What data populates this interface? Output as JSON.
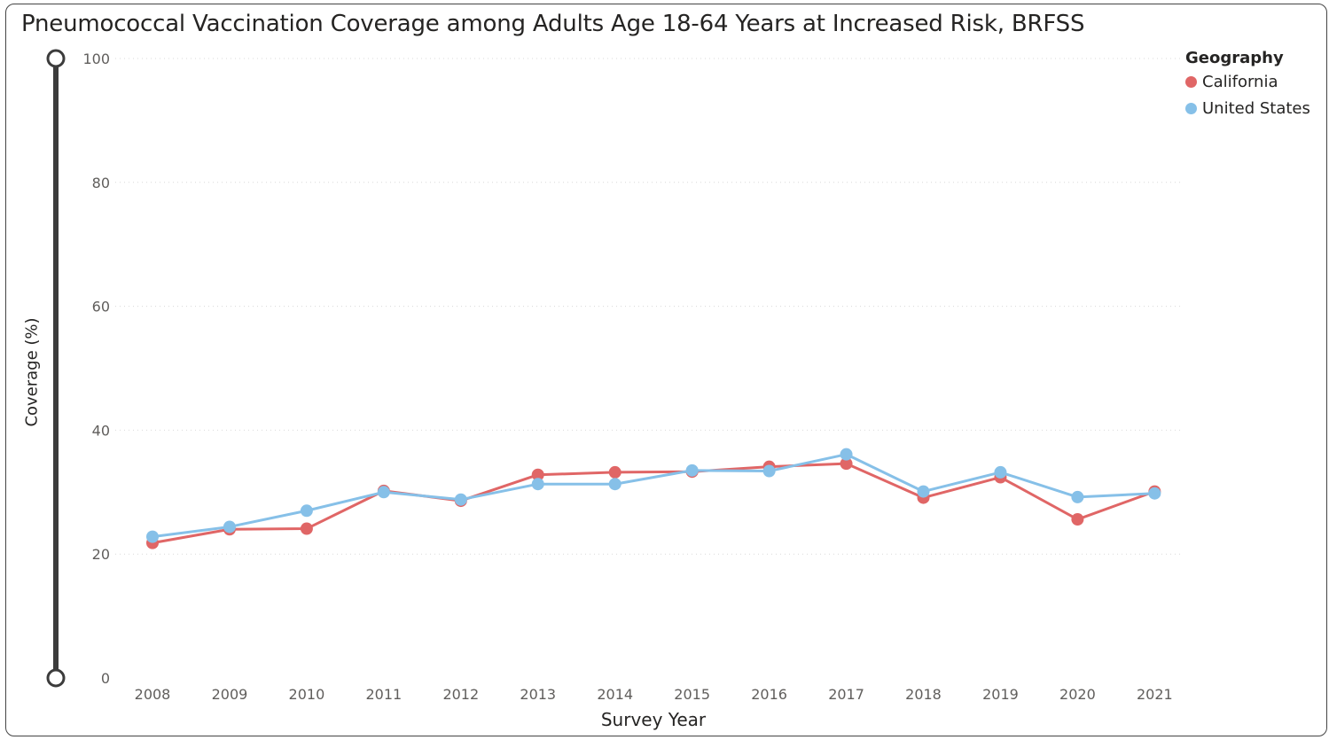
{
  "colors": {
    "California": "#e06666",
    "United States": "#86c0e8",
    "slider": "#3c3c3c",
    "grid": "#d9d9d9"
  },
  "chart_data": {
    "type": "line",
    "title": "Pneumococcal Vaccination Coverage among Adults Age 18-64 Years at Increased Risk, BRFSS",
    "xlabel": "Survey Year",
    "ylabel": "Coverage (%)",
    "ylim": [
      0,
      100
    ],
    "yticks": [
      "0",
      "20",
      "40",
      "60",
      "80",
      "100"
    ],
    "categories": [
      "2008",
      "2009",
      "2010",
      "2011",
      "2012",
      "2013",
      "2014",
      "2015",
      "2016",
      "2017",
      "2018",
      "2019",
      "2020",
      "2021"
    ],
    "legend_title": "Geography",
    "legend_position": "top-right",
    "grid": true,
    "series": [
      {
        "name": "California",
        "values": [
          21.8,
          24.0,
          24.1,
          30.2,
          28.6,
          32.8,
          33.2,
          33.3,
          34.1,
          34.6,
          29.1,
          32.4,
          25.6,
          30.1
        ]
      },
      {
        "name": "United States",
        "values": [
          22.8,
          24.4,
          27.0,
          30.0,
          28.8,
          31.3,
          31.3,
          33.5,
          33.4,
          36.1,
          30.1,
          33.2,
          29.2,
          29.8
        ]
      }
    ]
  }
}
